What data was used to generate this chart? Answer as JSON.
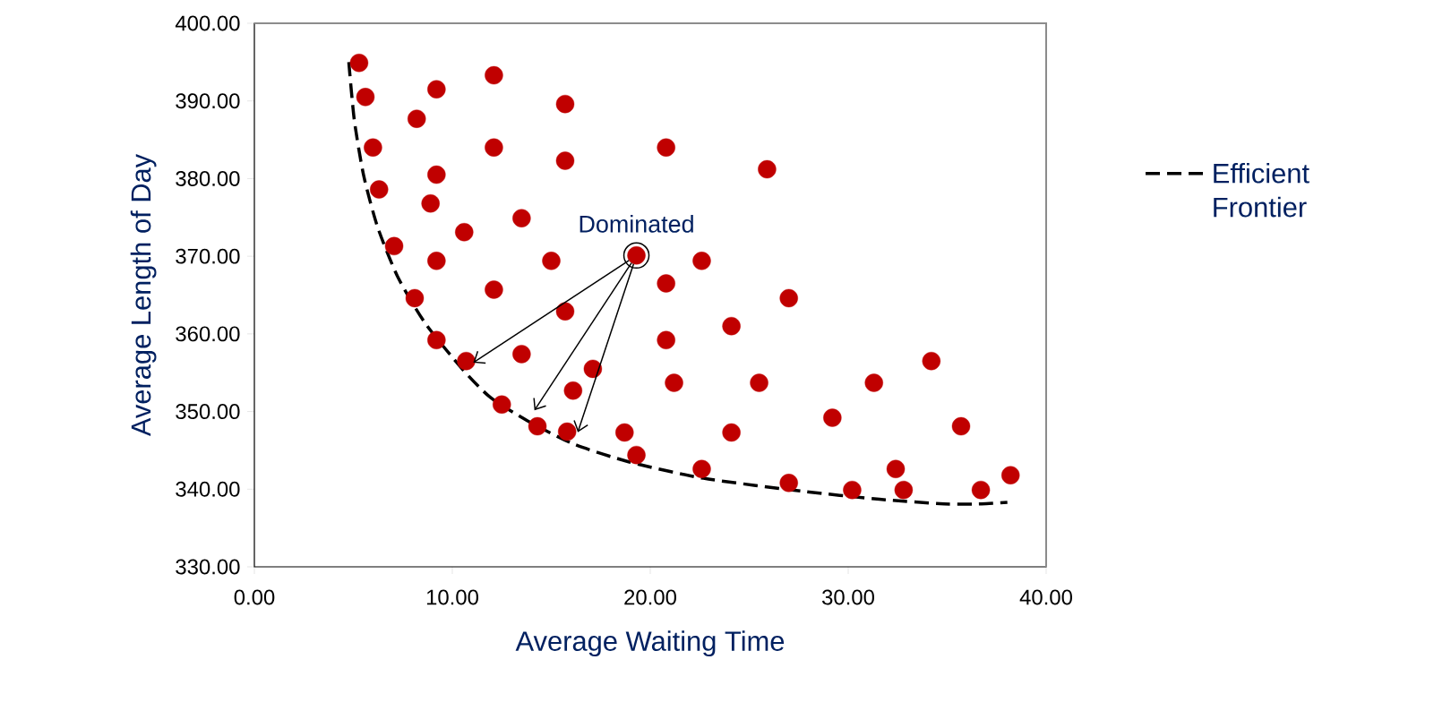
{
  "chart_data": {
    "type": "scatter",
    "xlabel": "Average Waiting Time",
    "ylabel": "Average Length of Day",
    "xlim": [
      0,
      40
    ],
    "ylim": [
      330,
      400
    ],
    "xticks": [
      {
        "value": 0,
        "label": "0.00"
      },
      {
        "value": 10,
        "label": "10.00"
      },
      {
        "value": 20,
        "label": "20.00"
      },
      {
        "value": 30,
        "label": "30.00"
      },
      {
        "value": 40,
        "label": "40.00"
      }
    ],
    "yticks": [
      {
        "value": 330,
        "label": "330.00"
      },
      {
        "value": 340,
        "label": "340.00"
      },
      {
        "value": 350,
        "label": "350.00"
      },
      {
        "value": 360,
        "label": "360.00"
      },
      {
        "value": 370,
        "label": "370.00"
      },
      {
        "value": 380,
        "label": "380.00"
      },
      {
        "value": 390,
        "label": "390.00"
      },
      {
        "value": 400,
        "label": "400.00"
      }
    ],
    "grid": false,
    "legend": "right",
    "annotations": [
      {
        "text": "Dominated",
        "x": 19.3,
        "y": 370.1
      }
    ],
    "series": [
      {
        "color": "#c00000",
        "marker": "circle",
        "x": [
          5.29,
          5.61,
          5.99,
          6.3,
          7.06,
          8.1,
          9.2,
          10.7,
          12.5,
          14.3,
          15.8,
          19.3,
          22.6,
          27.0,
          30.2,
          32.8,
          32.4,
          36.7,
          38.2,
          35.7,
          34.2,
          31.3,
          29.2,
          25.5,
          24.1,
          18.7,
          16.1,
          17.1,
          13.5,
          15.7,
          12.1,
          9.2,
          10.6,
          13.5,
          15.0,
          8.9,
          9.2,
          8.2,
          9.2,
          12.1,
          12.1,
          15.7,
          15.7,
          20.8,
          25.9,
          19.3,
          20.8,
          22.6,
          27.0,
          24.1,
          20.8,
          21.2
        ],
        "values": [
          394.9,
          390.5,
          384.0,
          378.6,
          371.3,
          364.6,
          359.2,
          356.5,
          350.9,
          348.1,
          347.4,
          344.4,
          342.6,
          340.8,
          339.9,
          339.9,
          342.6,
          339.9,
          341.8,
          348.1,
          356.5,
          353.7,
          349.2,
          353.7,
          347.3,
          347.3,
          352.7,
          355.5,
          357.4,
          362.9,
          365.7,
          369.4,
          373.1,
          374.9,
          369.4,
          376.8,
          380.5,
          387.7,
          391.5,
          393.3,
          384.0,
          389.6,
          382.3,
          384.0,
          381.2,
          370.1,
          366.5,
          369.4,
          364.6,
          361.0,
          359.2,
          353.7
        ]
      },
      {
        "type": "line",
        "name": "Efficient Frontier",
        "color": "#000000",
        "line_style": "dashed",
        "x": [
          4.77,
          5.05,
          5.52,
          6.22,
          7.25,
          8.65,
          10.53,
          11.93,
          13.8,
          16.14,
          18.95,
          22.69,
          27.8,
          31.58,
          34.85,
          36.73,
          38.04
        ],
        "values": [
          395.0,
          387.5,
          380.4,
          373.8,
          367.3,
          361.3,
          355.4,
          351.8,
          348.8,
          345.8,
          343.5,
          341.4,
          339.7,
          338.7,
          338.1,
          338.1,
          338.3
        ]
      }
    ]
  }
}
